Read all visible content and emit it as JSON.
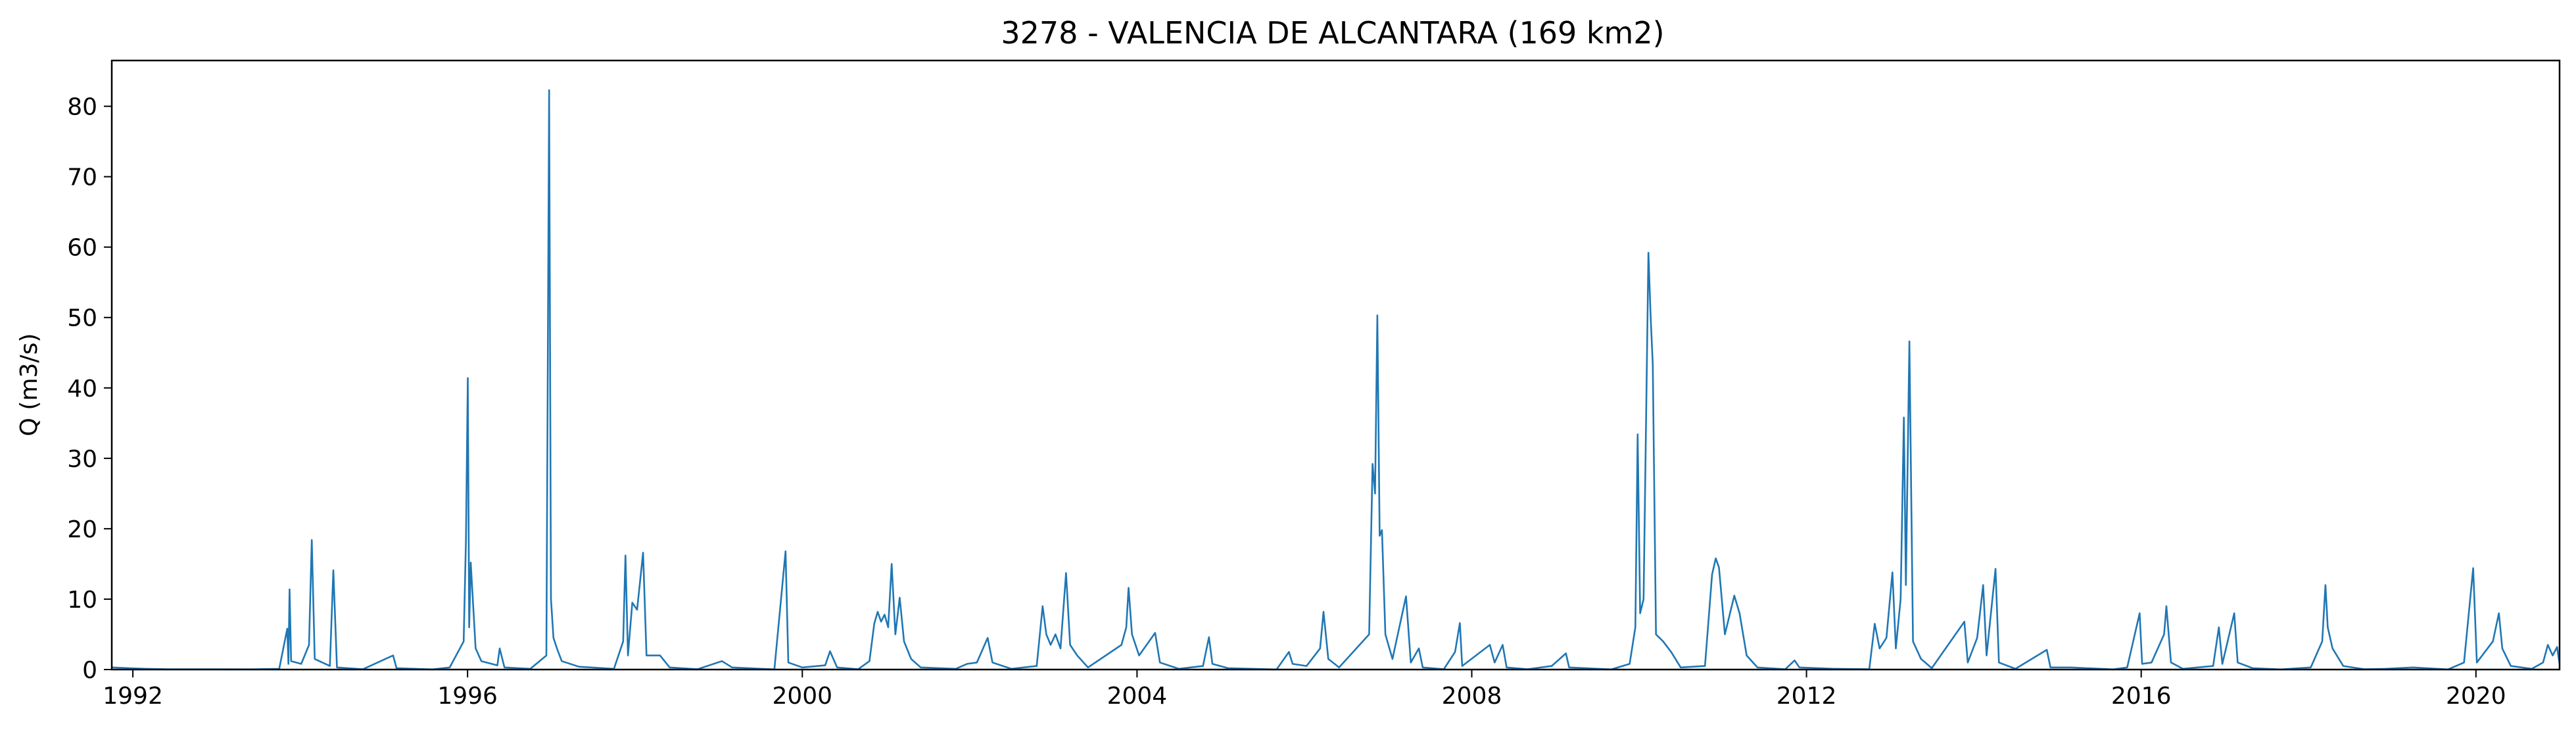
{
  "chart_data": {
    "type": "line",
    "title": "3278 - VALENCIA DE ALCANTARA (169 km2)",
    "xlabel": "",
    "ylabel": "Q (m3/s)",
    "xlim": [
      "1991-10-01",
      "2020-12-31"
    ],
    "ylim": [
      0,
      86.5
    ],
    "x_ticks": [
      {
        "label": "1992",
        "value": "1992-01-01"
      },
      {
        "label": "1996",
        "value": "1996-01-01"
      },
      {
        "label": "2000",
        "value": "2000-01-01"
      },
      {
        "label": "2004",
        "value": "2004-01-01"
      },
      {
        "label": "2008",
        "value": "2008-01-01"
      },
      {
        "label": "2012",
        "value": "2012-01-01"
      },
      {
        "label": "2016",
        "value": "2016-01-01"
      },
      {
        "label": "2020",
        "value": "2020-01-01"
      }
    ],
    "y_ticks": [
      0,
      10,
      20,
      30,
      40,
      50,
      60,
      70,
      80
    ],
    "grid": false,
    "color": "#1f77b4",
    "series": [
      {
        "name": "",
        "points": [
          [
            "1991-10-01",
            0.3
          ],
          [
            "1991-12-15",
            0.2
          ],
          [
            "1992-03-01",
            0.1
          ],
          [
            "1992-06-01",
            0.05
          ],
          [
            "1992-10-01",
            0.05
          ],
          [
            "1993-01-01",
            0.05
          ],
          [
            "1993-06-01",
            0.03
          ],
          [
            "1993-10-01",
            0.1
          ],
          [
            "1993-11-05",
            5.8
          ],
          [
            "1993-11-10",
            0.8
          ],
          [
            "1993-11-15",
            11.4
          ],
          [
            "1993-11-22",
            1.2
          ],
          [
            "1994-01-05",
            0.8
          ],
          [
            "1994-02-08",
            3.5
          ],
          [
            "1994-02-20",
            18.4
          ],
          [
            "1994-03-05",
            1.5
          ],
          [
            "1994-05-10",
            0.5
          ],
          [
            "1994-05-25",
            14.1
          ],
          [
            "1994-06-10",
            0.3
          ],
          [
            "1994-10-01",
            0.05
          ],
          [
            "1995-02-10",
            2.0
          ],
          [
            "1995-02-25",
            0.2
          ],
          [
            "1995-08-01",
            0.02
          ],
          [
            "1995-10-15",
            0.3
          ],
          [
            "1995-12-15",
            4.0
          ],
          [
            "1995-12-25",
            18.5
          ],
          [
            "1996-01-02",
            41.4
          ],
          [
            "1996-01-08",
            6.0
          ],
          [
            "1996-01-15",
            15.2
          ],
          [
            "1996-01-22",
            11.0
          ],
          [
            "1996-02-05",
            3.0
          ],
          [
            "1996-03-01",
            1.2
          ],
          [
            "1996-05-10",
            0.6
          ],
          [
            "1996-05-20",
            3.0
          ],
          [
            "1996-06-10",
            0.3
          ],
          [
            "1996-10-01",
            0.1
          ],
          [
            "1996-12-10",
            2.0
          ],
          [
            "1996-12-22",
            82.3
          ],
          [
            "1996-12-30",
            10.0
          ],
          [
            "1997-01-10",
            4.5
          ],
          [
            "1997-01-25",
            3.0
          ],
          [
            "1997-02-15",
            1.2
          ],
          [
            "1997-05-01",
            0.4
          ],
          [
            "1997-10-01",
            0.1
          ],
          [
            "1997-11-10",
            4.0
          ],
          [
            "1997-11-20",
            16.2
          ],
          [
            "1997-12-01",
            2.0
          ],
          [
            "1997-12-20",
            9.5
          ],
          [
            "1998-01-10",
            8.5
          ],
          [
            "1998-02-05",
            16.6
          ],
          [
            "1998-02-20",
            2.0
          ],
          [
            "1998-04-20",
            2.0
          ],
          [
            "1998-06-01",
            0.3
          ],
          [
            "1998-10-01",
            0.05
          ],
          [
            "1999-01-15",
            1.2
          ],
          [
            "1999-03-01",
            0.3
          ],
          [
            "1999-09-01",
            0.02
          ],
          [
            "1999-10-20",
            16.8
          ],
          [
            "1999-11-01",
            1.0
          ],
          [
            "2000-01-01",
            0.3
          ],
          [
            "2000-04-10",
            0.6
          ],
          [
            "2000-05-01",
            2.6
          ],
          [
            "2000-06-01",
            0.3
          ],
          [
            "2000-09-01",
            0.05
          ],
          [
            "2000-10-20",
            1.2
          ],
          [
            "2000-11-10",
            6.5
          ],
          [
            "2000-11-25",
            8.2
          ],
          [
            "2000-12-10",
            6.8
          ],
          [
            "2000-12-25",
            7.8
          ],
          [
            "2001-01-10",
            6.0
          ],
          [
            "2001-01-25",
            15.0
          ],
          [
            "2001-02-10",
            5.0
          ],
          [
            "2001-03-01",
            10.2
          ],
          [
            "2001-03-20",
            4.0
          ],
          [
            "2001-04-20",
            1.5
          ],
          [
            "2001-06-01",
            0.3
          ],
          [
            "2001-11-01",
            0.1
          ],
          [
            "2001-12-20",
            0.8
          ],
          [
            "2002-02-01",
            1.0
          ],
          [
            "2002-03-20",
            4.5
          ],
          [
            "2002-04-10",
            1.0
          ],
          [
            "2002-07-01",
            0.1
          ],
          [
            "2002-10-20",
            0.5
          ],
          [
            "2002-11-15",
            9.0
          ],
          [
            "2002-12-01",
            5.0
          ],
          [
            "2002-12-20",
            3.5
          ],
          [
            "2003-01-10",
            5.0
          ],
          [
            "2003-02-01",
            3.0
          ],
          [
            "2003-02-25",
            13.7
          ],
          [
            "2003-03-15",
            3.5
          ],
          [
            "2003-04-15",
            2.0
          ],
          [
            "2003-06-01",
            0.3
          ],
          [
            "2003-10-25",
            3.5
          ],
          [
            "2003-11-15",
            6.0
          ],
          [
            "2003-11-25",
            11.6
          ],
          [
            "2003-12-10",
            5.0
          ],
          [
            "2004-01-10",
            2.0
          ],
          [
            "2004-03-20",
            5.2
          ],
          [
            "2004-04-10",
            1.0
          ],
          [
            "2004-07-01",
            0.1
          ],
          [
            "2004-10-15",
            0.5
          ],
          [
            "2004-11-10",
            4.6
          ],
          [
            "2004-11-25",
            0.8
          ],
          [
            "2005-02-01",
            0.2
          ],
          [
            "2005-09-01",
            0.01
          ],
          [
            "2005-10-25",
            2.5
          ],
          [
            "2005-11-10",
            0.8
          ],
          [
            "2006-01-10",
            0.5
          ],
          [
            "2006-03-10",
            3.0
          ],
          [
            "2006-03-25",
            8.2
          ],
          [
            "2006-04-15",
            1.5
          ],
          [
            "2006-06-01",
            0.3
          ],
          [
            "2006-10-10",
            5.0
          ],
          [
            "2006-10-25",
            29.2
          ],
          [
            "2006-11-05",
            25.0
          ],
          [
            "2006-11-15",
            50.3
          ],
          [
            "2006-11-25",
            19.0
          ],
          [
            "2006-12-05",
            19.8
          ],
          [
            "2006-12-20",
            5.0
          ],
          [
            "2007-01-20",
            1.5
          ],
          [
            "2007-03-20",
            10.4
          ],
          [
            "2007-04-10",
            1.0
          ],
          [
            "2007-05-15",
            3.0
          ],
          [
            "2007-06-01",
            0.3
          ],
          [
            "2007-09-01",
            0.05
          ],
          [
            "2007-10-20",
            2.5
          ],
          [
            "2007-11-10",
            6.6
          ],
          [
            "2007-11-20",
            0.5
          ],
          [
            "2008-03-20",
            3.5
          ],
          [
            "2008-04-10",
            1.0
          ],
          [
            "2008-05-15",
            3.5
          ],
          [
            "2008-06-01",
            0.3
          ],
          [
            "2008-09-01",
            0.05
          ],
          [
            "2008-12-15",
            0.5
          ],
          [
            "2009-02-15",
            2.3
          ],
          [
            "2009-03-01",
            0.3
          ],
          [
            "2009-09-01",
            0.02
          ],
          [
            "2009-11-20",
            0.8
          ],
          [
            "2009-12-15",
            6.0
          ],
          [
            "2009-12-25",
            33.4
          ],
          [
            "2010-01-05",
            8.0
          ],
          [
            "2010-01-20",
            10.0
          ],
          [
            "2010-02-10",
            59.2
          ],
          [
            "2010-02-20",
            50.0
          ],
          [
            "2010-03-01",
            43.4
          ],
          [
            "2010-03-15",
            5.0
          ],
          [
            "2010-04-15",
            4.0
          ],
          [
            "2010-05-20",
            2.5
          ],
          [
            "2010-07-01",
            0.3
          ],
          [
            "2010-10-15",
            0.5
          ],
          [
            "2010-11-15",
            13.5
          ],
          [
            "2010-12-01",
            15.8
          ],
          [
            "2010-12-15",
            14.5
          ],
          [
            "2011-01-10",
            5.0
          ],
          [
            "2011-02-20",
            10.5
          ],
          [
            "2011-03-15",
            8.0
          ],
          [
            "2011-04-15",
            2.0
          ],
          [
            "2011-06-01",
            0.3
          ],
          [
            "2011-10-01",
            0.05
          ],
          [
            "2011-11-10",
            1.3
          ],
          [
            "2011-12-01",
            0.3
          ],
          [
            "2012-05-01",
            0.1
          ],
          [
            "2012-10-01",
            0.05
          ],
          [
            "2012-10-25",
            6.5
          ],
          [
            "2012-11-15",
            3.0
          ],
          [
            "2012-12-15",
            4.5
          ],
          [
            "2013-01-10",
            13.8
          ],
          [
            "2013-01-25",
            3.0
          ],
          [
            "2013-02-15",
            10.0
          ],
          [
            "2013-03-01",
            35.8
          ],
          [
            "2013-03-10",
            12.0
          ],
          [
            "2013-03-25",
            46.6
          ],
          [
            "2013-04-10",
            4.0
          ],
          [
            "2013-05-15",
            1.5
          ],
          [
            "2013-07-01",
            0.2
          ],
          [
            "2013-11-20",
            6.8
          ],
          [
            "2013-12-05",
            1.0
          ],
          [
            "2014-01-15",
            4.5
          ],
          [
            "2014-02-10",
            12.0
          ],
          [
            "2014-02-25",
            2.0
          ],
          [
            "2014-04-05",
            14.3
          ],
          [
            "2014-04-20",
            1.0
          ],
          [
            "2014-07-01",
            0.1
          ],
          [
            "2014-11-15",
            2.8
          ],
          [
            "2014-12-01",
            0.3
          ],
          [
            "2015-03-01",
            0.3
          ],
          [
            "2015-09-01",
            0.02
          ],
          [
            "2015-11-01",
            0.3
          ],
          [
            "2015-12-25",
            8.0
          ],
          [
            "2016-01-05",
            0.8
          ],
          [
            "2016-02-15",
            1.0
          ],
          [
            "2016-04-10",
            5.0
          ],
          [
            "2016-04-20",
            9.0
          ],
          [
            "2016-05-10",
            1.0
          ],
          [
            "2016-07-01",
            0.1
          ],
          [
            "2016-11-10",
            0.5
          ],
          [
            "2016-12-05",
            6.0
          ],
          [
            "2016-12-20",
            0.8
          ],
          [
            "2017-02-10",
            8.0
          ],
          [
            "2017-02-25",
            1.0
          ],
          [
            "2017-05-01",
            0.2
          ],
          [
            "2017-09-01",
            0.02
          ],
          [
            "2018-01-10",
            0.3
          ],
          [
            "2018-03-01",
            4.0
          ],
          [
            "2018-03-15",
            12.0
          ],
          [
            "2018-03-25",
            6.0
          ],
          [
            "2018-04-15",
            3.0
          ],
          [
            "2018-06-01",
            0.5
          ],
          [
            "2018-09-01",
            0.05
          ],
          [
            "2018-12-01",
            0.1
          ],
          [
            "2019-04-01",
            0.3
          ],
          [
            "2019-09-01",
            0.02
          ],
          [
            "2019-11-10",
            1.0
          ],
          [
            "2019-12-20",
            14.4
          ],
          [
            "2020-01-05",
            1.0
          ],
          [
            "2020-03-15",
            4.0
          ],
          [
            "2020-04-10",
            8.0
          ],
          [
            "2020-04-25",
            3.0
          ],
          [
            "2020-06-01",
            0.5
          ],
          [
            "2020-09-01",
            0.1
          ],
          [
            "2020-10-20",
            1.0
          ],
          [
            "2020-11-10",
            3.5
          ],
          [
            "2020-12-01",
            2.0
          ],
          [
            "2020-12-20",
            3.2
          ],
          [
            "2020-12-31",
            0.8
          ]
        ]
      }
    ]
  }
}
